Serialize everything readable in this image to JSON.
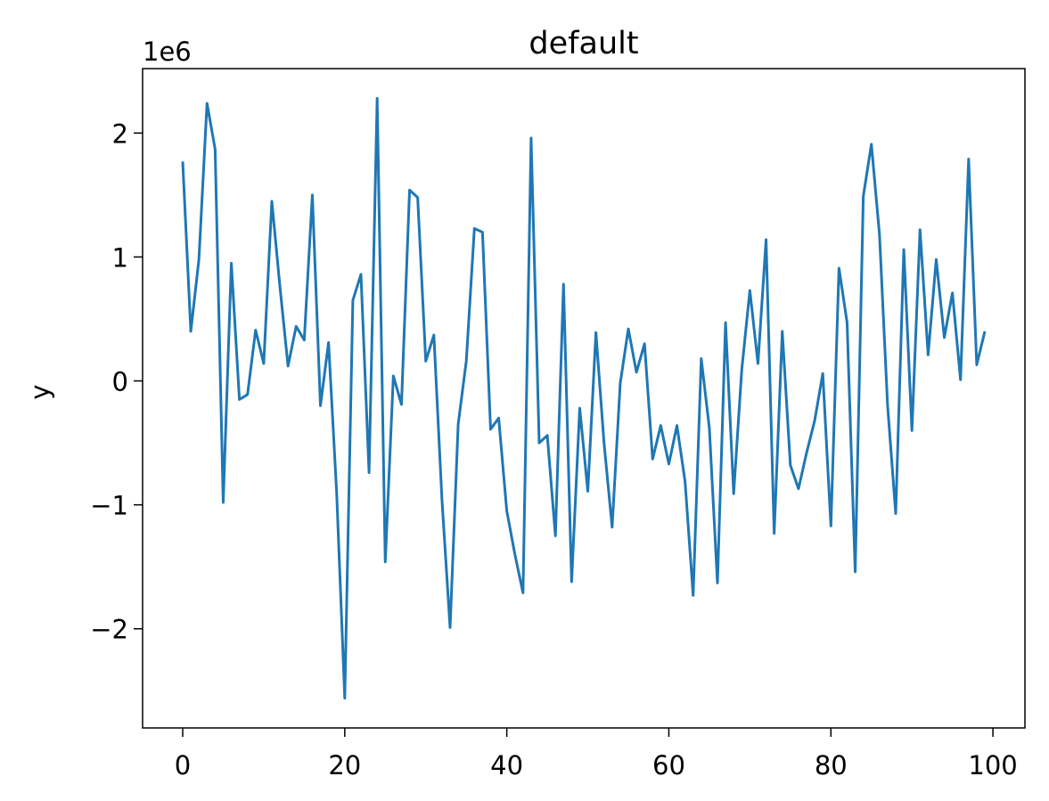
{
  "chart_data": {
    "type": "line",
    "title": "default",
    "y_label": "y",
    "y_offset_text": "1e6",
    "x": [
      0,
      1,
      2,
      3,
      4,
      5,
      6,
      7,
      8,
      9,
      10,
      11,
      12,
      13,
      14,
      15,
      16,
      17,
      18,
      19,
      20,
      21,
      22,
      23,
      24,
      25,
      26,
      27,
      28,
      29,
      30,
      31,
      32,
      33,
      34,
      35,
      36,
      37,
      38,
      39,
      40,
      41,
      42,
      43,
      44,
      45,
      46,
      47,
      48,
      49,
      50,
      51,
      52,
      53,
      54,
      55,
      56,
      57,
      58,
      59,
      60,
      61,
      62,
      63,
      64,
      65,
      66,
      67,
      68,
      69,
      70,
      71,
      72,
      73,
      74,
      75,
      76,
      77,
      78,
      79,
      80,
      81,
      82,
      83,
      84,
      85,
      86,
      87,
      88,
      89,
      90,
      91,
      92,
      93,
      94,
      95,
      96,
      97,
      98,
      99
    ],
    "series": [
      {
        "color": "#1f77b4",
        "values": [
          1.77,
          0.4,
          0.98,
          2.24,
          1.87,
          -0.98,
          0.95,
          -0.15,
          -0.11,
          0.41,
          0.14,
          1.45,
          0.76,
          0.12,
          0.44,
          0.33,
          1.5,
          -0.2,
          0.31,
          -0.9,
          -2.56,
          0.65,
          0.86,
          -0.74,
          2.28,
          -1.46,
          0.04,
          -0.19,
          1.54,
          1.48,
          0.16,
          0.37,
          -0.96,
          -1.99,
          -0.35,
          0.16,
          1.23,
          1.2,
          -0.39,
          -0.3,
          -1.05,
          -1.4,
          -1.71,
          1.96,
          -0.5,
          -0.44,
          -1.25,
          0.78,
          -1.62,
          -0.22,
          -0.89,
          0.39,
          -0.5,
          -1.18,
          -0.02,
          0.42,
          0.07,
          0.3,
          -0.63,
          -0.36,
          -0.67,
          -0.36,
          -0.81,
          -1.73,
          0.18,
          -0.38,
          -1.63,
          0.47,
          -0.91,
          0.09,
          0.73,
          0.14,
          1.14,
          -1.23,
          0.4,
          -0.68,
          -0.87,
          -0.58,
          -0.32,
          0.06,
          -1.17,
          0.91,
          0.47,
          -1.54,
          1.49,
          1.91,
          1.18,
          -0.2,
          -1.07,
          1.06,
          -0.4,
          1.22,
          0.21,
          0.98,
          0.35,
          0.71,
          0.01,
          1.79,
          0.13,
          0.4
        ]
      }
    ],
    "xlim": [
      -4.95,
      103.95
    ],
    "ylim": [
      -2.8,
      2.52
    ],
    "xticks": [
      0,
      20,
      40,
      60,
      80,
      100
    ],
    "yticks": [
      {
        "value": -2,
        "label": "−2"
      },
      {
        "value": -1,
        "label": "−1"
      },
      0,
      1,
      2
    ]
  }
}
